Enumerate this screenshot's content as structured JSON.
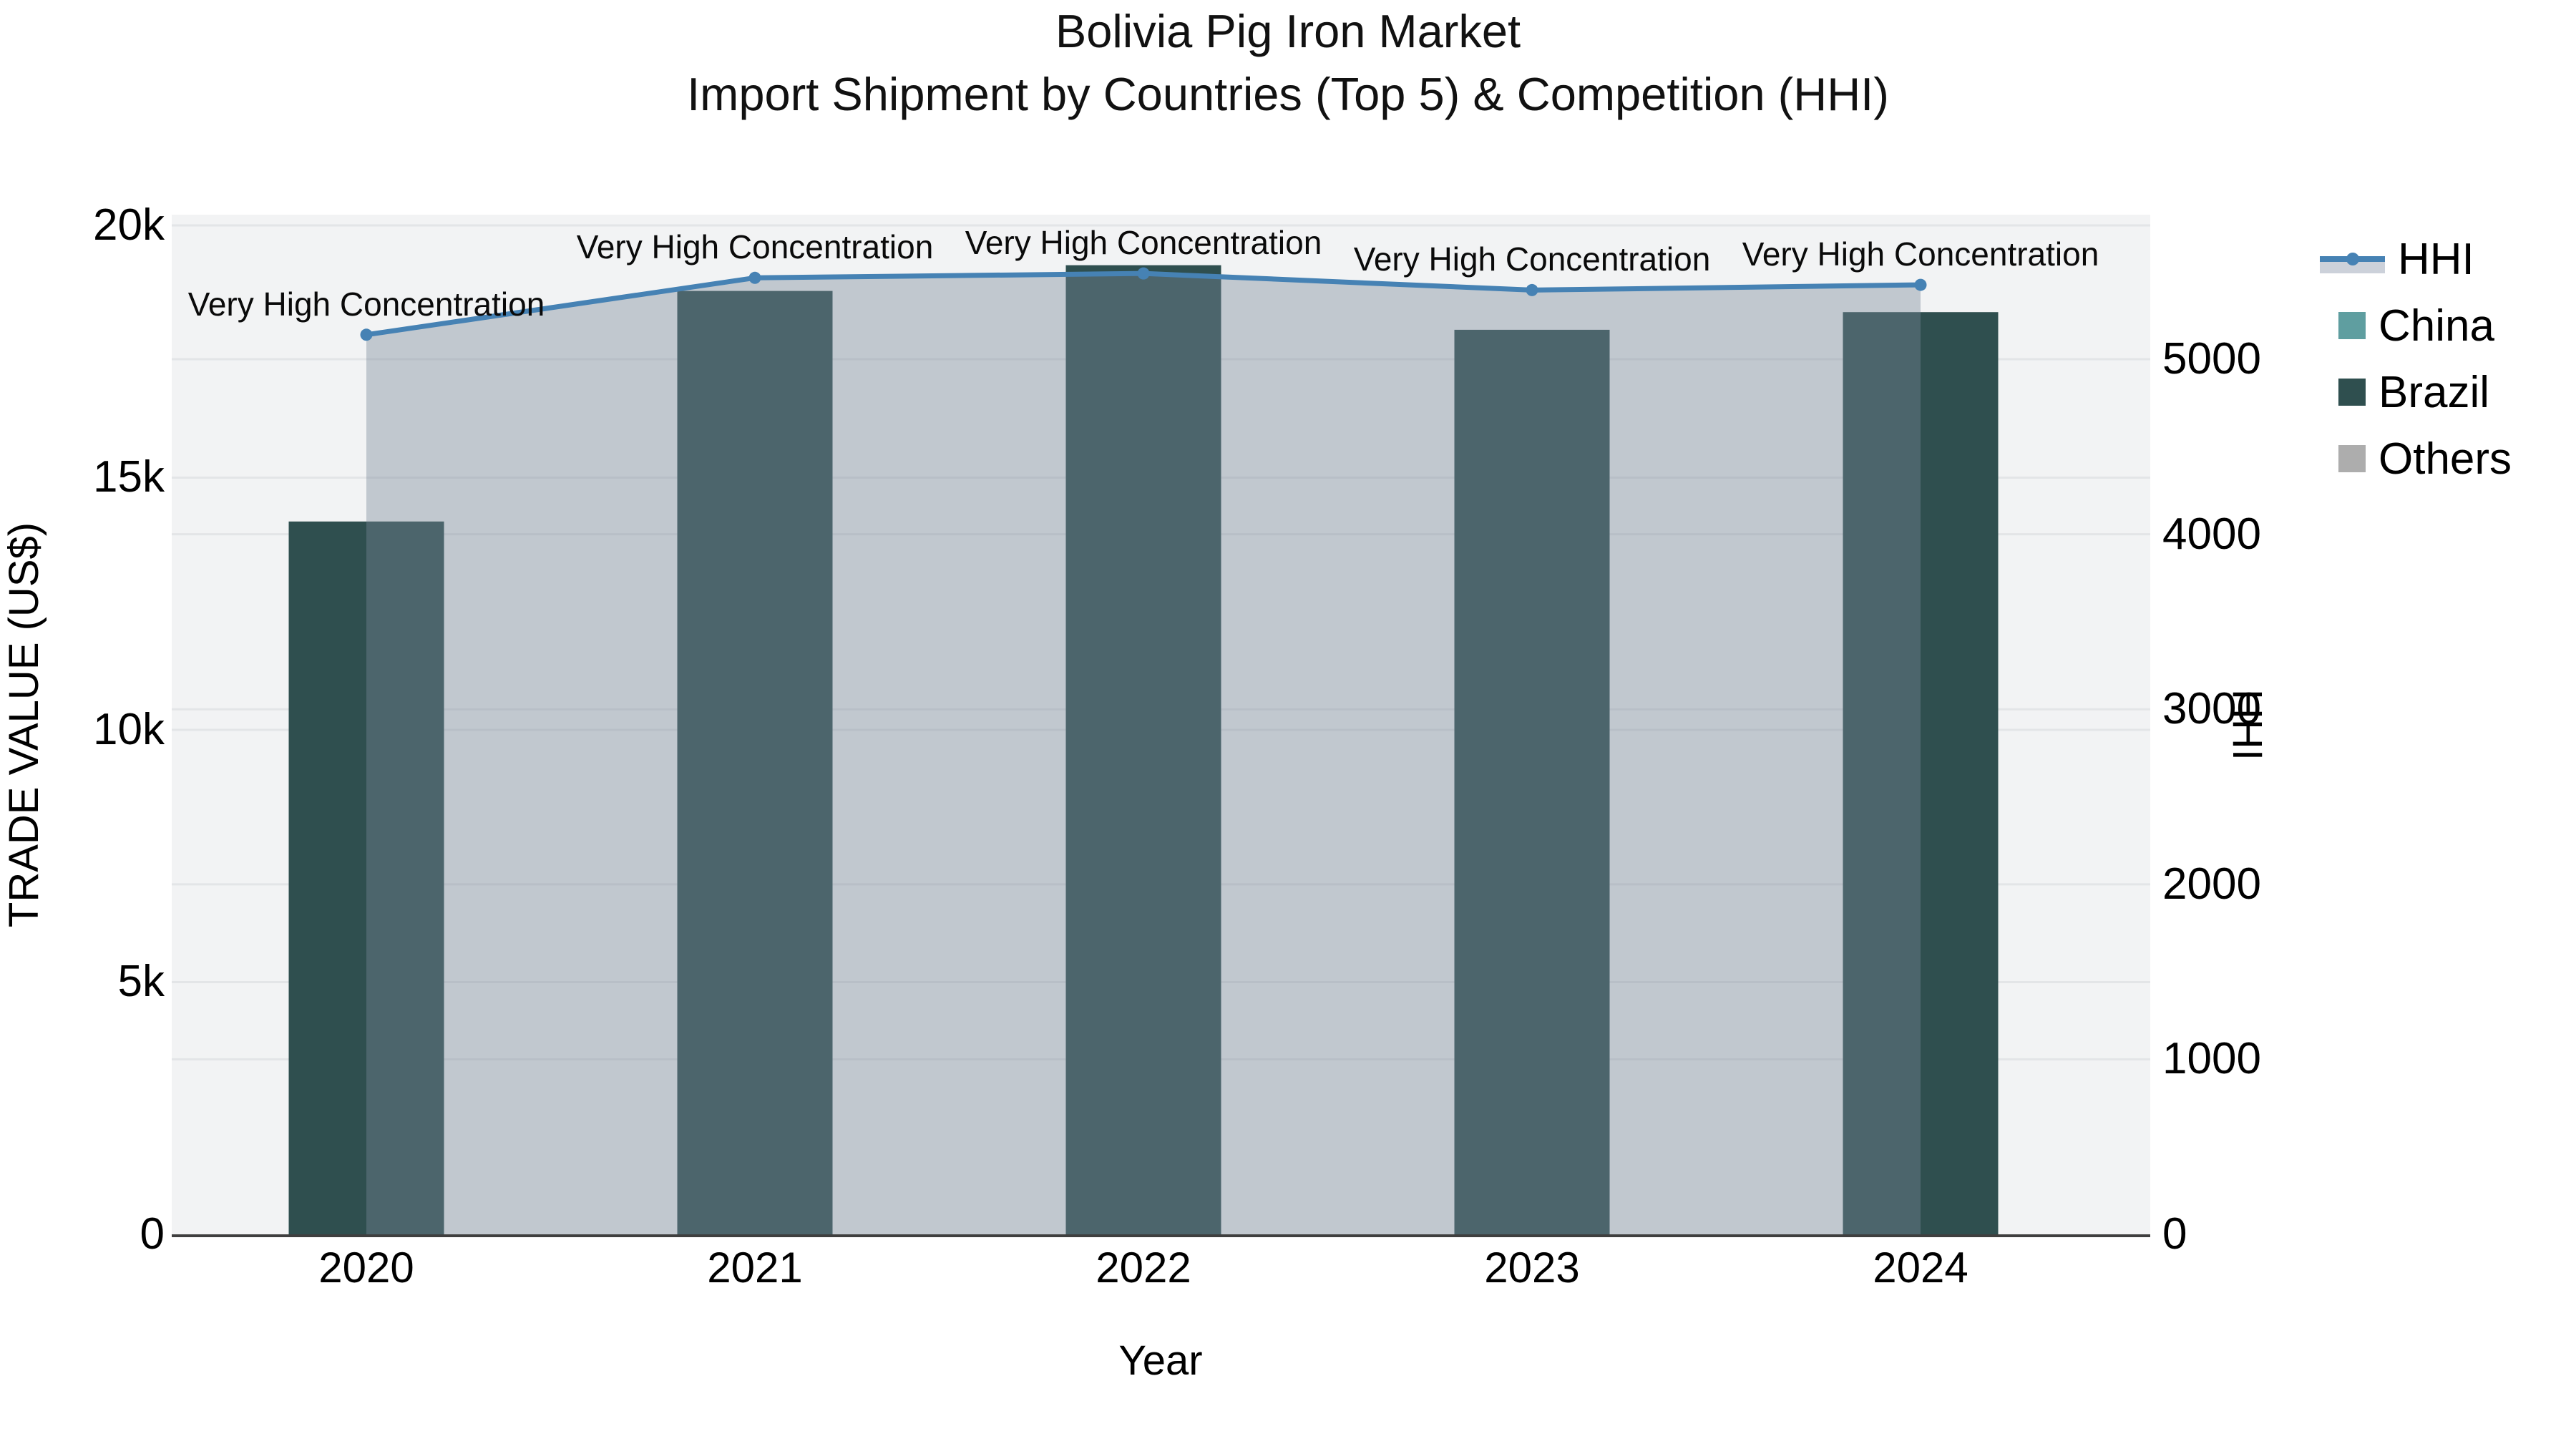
{
  "title": {
    "line1": "Bolivia Pig Iron Market",
    "line2": "Import Shipment by Countries (Top 5) & Competition (HHI)"
  },
  "chart_data": {
    "type": "bar+line",
    "categories": [
      "2020",
      "2021",
      "2022",
      "2023",
      "2024"
    ],
    "series": [
      {
        "name": "HHI",
        "type": "line",
        "axis": "right",
        "color": "#4682b4",
        "fill": "rgba(119,136,153,0.4)",
        "values": [
          5140,
          5465,
          5490,
          5395,
          5425
        ]
      },
      {
        "name": "China",
        "type": "bar",
        "axis": "left",
        "color": "#5f9ea0",
        "values": [
          0,
          0,
          0,
          0,
          0
        ]
      },
      {
        "name": "Brazil",
        "type": "bar",
        "axis": "left",
        "color": "#2f4f4f",
        "values": [
          14130,
          18700,
          19210,
          17930,
          18280
        ]
      },
      {
        "name": "Others",
        "type": "bar",
        "axis": "left",
        "color": "#adadad",
        "values": [
          0,
          0,
          0,
          0,
          0
        ]
      }
    ],
    "annotations": [
      {
        "category": "2020",
        "text": "Very High Concentration"
      },
      {
        "category": "2021",
        "text": "Very High Concentration"
      },
      {
        "category": "2022",
        "text": "Very High Concentration"
      },
      {
        "category": "2023",
        "text": "Very High Concentration"
      },
      {
        "category": "2024",
        "text": "Very High Concentration"
      }
    ],
    "xlabel": "Year",
    "ylabel_left": "TRADE VALUE (US$)",
    "ylabel_right": "HHI",
    "yaxis_left": {
      "max": 20212,
      "tick_values": [
        0,
        5000,
        10000,
        15000,
        20000
      ],
      "tick_labels": [
        "0",
        "5k",
        "10k",
        "15k",
        "20k"
      ]
    },
    "yaxis_right": {
      "max": 5826,
      "tick_values": [
        0,
        1000,
        2000,
        3000,
        4000,
        5000
      ],
      "tick_labels": [
        "0",
        "1000",
        "2000",
        "3000",
        "4000",
        "5000"
      ]
    },
    "legend_position": "right",
    "grid": true,
    "plot_bg": "#f2f3f4",
    "grid_color": "#e3e5e7",
    "line_width": 7,
    "marker_diameter": 17
  },
  "legend": {
    "items": [
      {
        "label": "HHI"
      },
      {
        "label": "China"
      },
      {
        "label": "Brazil"
      },
      {
        "label": "Others"
      }
    ]
  }
}
